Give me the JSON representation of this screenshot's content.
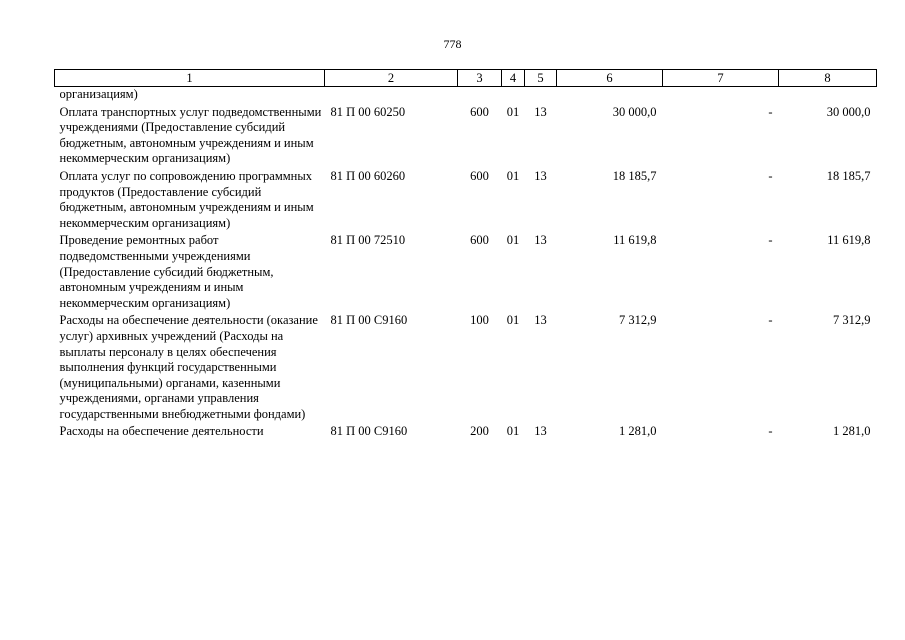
{
  "page": {
    "number": "778"
  },
  "table": {
    "headers": [
      "1",
      "2",
      "3",
      "4",
      "5",
      "6",
      "7",
      "8"
    ],
    "continuation": {
      "name": "организациям)"
    },
    "rows": [
      {
        "name": "Оплата транспортных услуг подведомственными учреждениями (Предоставление субсидий бюджетным, автономным учреждениям и иным некоммерческим организациям)",
        "code": "81 П 00 60250",
        "vr": "600",
        "rz": "01",
        "pr": "13",
        "col6": "30 000,0",
        "col7": "-",
        "col8": "30 000,0"
      },
      {
        "name": "Оплата услуг по сопровождению программных продуктов (Предоставление субсидий бюджетным, автономным учреждениям и иным некоммерческим организациям)",
        "code": "81 П 00 60260",
        "vr": "600",
        "rz": "01",
        "pr": "13",
        "col6": "18 185,7",
        "col7": "-",
        "col8": "18 185,7"
      },
      {
        "name": "Проведение ремонтных работ подведомственными учреждениями (Предоставление субсидий бюджетным, автономным учреждениям и иным некоммерческим организациям)",
        "code": "81 П 00 72510",
        "vr": "600",
        "rz": "01",
        "pr": "13",
        "col6": "11 619,8",
        "col7": "-",
        "col8": "11 619,8"
      },
      {
        "name": "Расходы на обеспечение деятельности (оказание услуг) архивных учреждений (Расходы на выплаты персоналу в целях обеспечения выполнения функций государственными (муниципальными) органами, казенными учреждениями, органами управления государственными внебюджетными фондами)",
        "code": "81 П 00 С9160",
        "vr": "100",
        "rz": "01",
        "pr": "13",
        "col6": "7 312,9",
        "col7": "-",
        "col8": "7 312,9"
      },
      {
        "name": "Расходы на обеспечение деятельности",
        "code": "81 П 00 С9160",
        "vr": "200",
        "rz": "01",
        "pr": "13",
        "col6": "1 281,0",
        "col7": "-",
        "col8": "1 281,0"
      }
    ]
  }
}
